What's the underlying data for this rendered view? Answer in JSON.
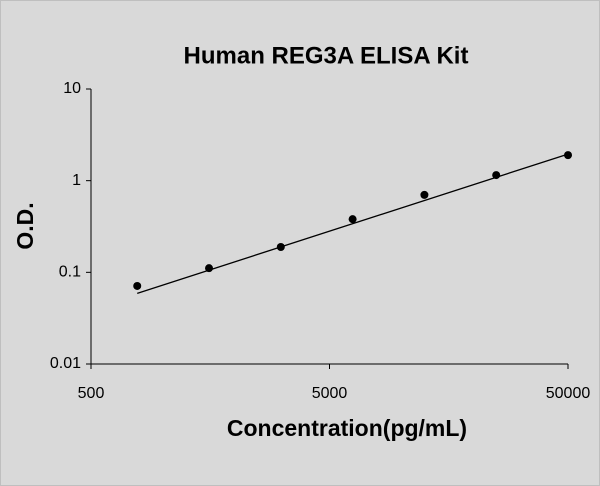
{
  "chart_data": {
    "type": "scatter",
    "title": "Human REG3A ELISA Kit",
    "x_label": "Concentration(pg/mL)",
    "y_label": "O.D.",
    "x": [
      781.25,
      1562.5,
      3125,
      6250,
      12500,
      25000,
      50000
    ],
    "values": [
      0.071,
      0.111,
      0.189,
      0.38,
      0.7,
      1.15,
      1.9
    ],
    "color": "#000000",
    "fit": {
      "x": [
        781.25,
        50000
      ],
      "values": [
        0.059,
        1.95
      ],
      "color": "#000000"
    },
    "x_log": true,
    "y_log": true,
    "xlim": [
      500,
      50000
    ],
    "xticks": [
      500,
      5000,
      50000
    ],
    "ylim": [
      0.01,
      10
    ],
    "yticks": [
      0.01,
      0.1,
      1,
      10
    ],
    "grid": false
  }
}
